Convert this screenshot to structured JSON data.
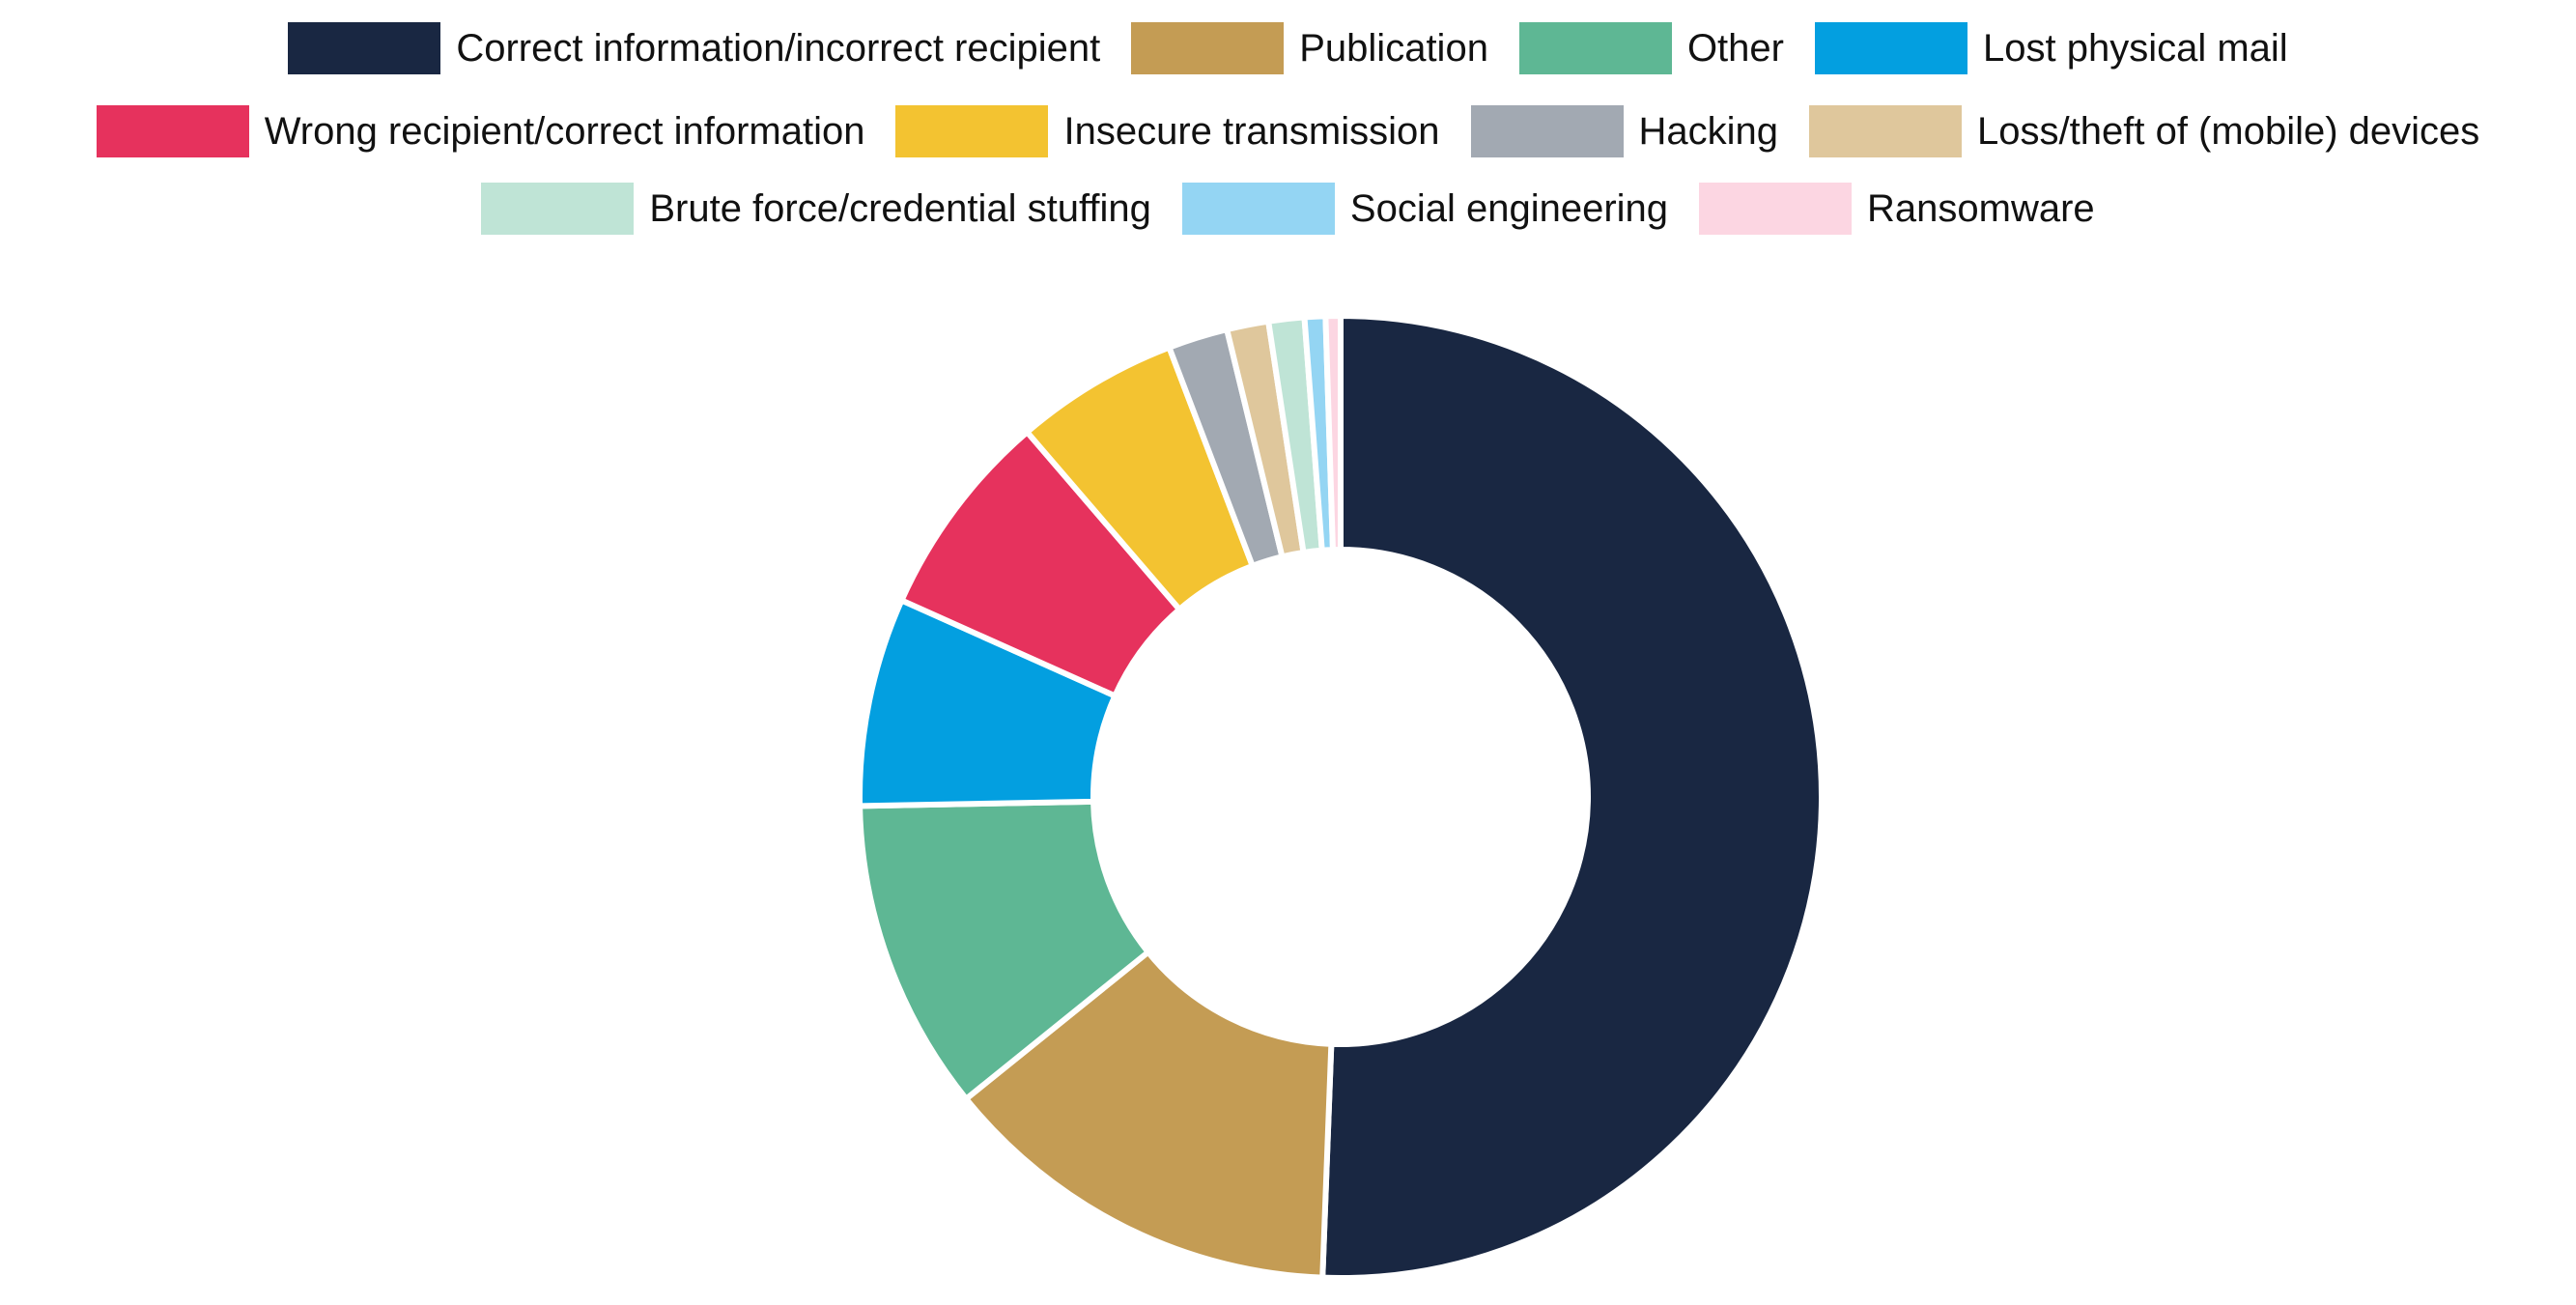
{
  "chart_data": {
    "type": "pie",
    "variant": "donut",
    "title": "",
    "categories": [
      "Correct information/incorrect recipient",
      "Publication",
      "Other",
      "Lost physical mail",
      "Wrong recipient/correct information",
      "Insecure transmission",
      "Hacking",
      "Loss/theft of (mobile) devices",
      "Brute force/credential stuffing",
      "Social engineering",
      "Ransomware"
    ],
    "values": [
      50.6,
      13.6,
      10.5,
      7.0,
      7.0,
      5.5,
      2.0,
      1.4,
      1.2,
      0.7,
      0.5
    ],
    "unit": "%",
    "colors": [
      "#192742",
      "#C49C54",
      "#5EB794",
      "#039FE0",
      "#E6325D",
      "#F3C331",
      "#A2A9B2",
      "#DFC79C",
      "#BFE4D6",
      "#94D5F3",
      "#FCD6E2"
    ],
    "legend_placement": "top",
    "legend_rows": [
      [
        0,
        1,
        2,
        3
      ],
      [
        4,
        5,
        6,
        7
      ],
      [
        8,
        9,
        10
      ]
    ]
  }
}
